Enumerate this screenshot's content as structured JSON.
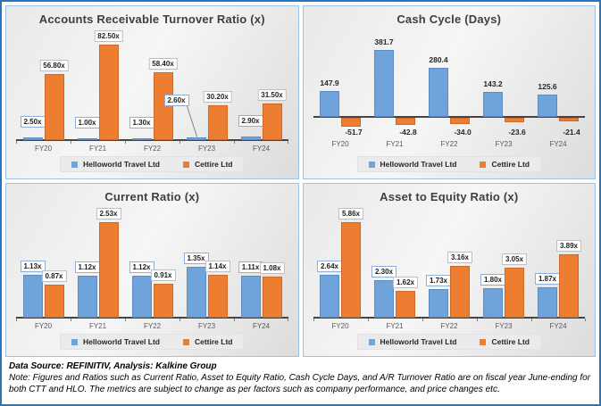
{
  "footer": {
    "source_line": "Data Source: REFINITIV, Analysis: Kalkine Group",
    "note_line": "Note: Figures and Ratios such as Current Ratio, Asset to Equity Ratio, Cash Cycle Days, and A/R Turnover Ratio are on fiscal year June-ending for both CTT and HLO. The metrics are subject to change as per factors such as company performance, and price changes etc."
  },
  "colors": {
    "series_helloworld": "#6FA3DB",
    "series_cettire": "#ED7D31",
    "outer_border": "#2E74B5",
    "panel_border": "#9DC3E6",
    "axis": "#454545"
  },
  "chart_data": [
    {
      "type": "bar",
      "title": "Accounts Receivable Turnover Ratio (x)",
      "categories": [
        "FY20",
        "FY21",
        "FY22",
        "FY23",
        "FY24"
      ],
      "series": [
        {
          "name": "Helloworld Travel Ltd",
          "color": "#6FA3DB",
          "values": [
            2.5,
            1.0,
            1.3,
            2.6,
            2.9
          ],
          "labels": [
            "2.50x",
            "1.00x",
            "1.30x",
            "2.60x",
            "2.90x"
          ]
        },
        {
          "name": "Cettire Ltd",
          "color": "#ED7D31",
          "values": [
            56.8,
            82.5,
            58.4,
            30.2,
            31.5
          ],
          "labels": [
            "56.80x",
            "82.50x",
            "58.40x",
            "30.20x",
            "31.50x"
          ]
        }
      ],
      "ylim": [
        0,
        90
      ],
      "grid": false,
      "legend_position": "bottom",
      "data_label_style": "boxed"
    },
    {
      "type": "bar",
      "title": "Cash Cycle (Days)",
      "categories": [
        "FY20",
        "FY21",
        "FY22",
        "FY23",
        "FY24"
      ],
      "series": [
        {
          "name": "Helloworld Travel Ltd",
          "color": "#6FA3DB",
          "values": [
            147.9,
            381.7,
            280.4,
            143.2,
            125.6
          ],
          "labels": [
            "147.9",
            "381.7",
            "280.4",
            "143.2",
            "125.6"
          ]
        },
        {
          "name": "Cettire Ltd",
          "color": "#ED7D31",
          "values": [
            -51.7,
            -42.8,
            -34.0,
            -23.6,
            -21.4
          ],
          "labels": [
            "-51.7",
            "-42.8",
            "-34.0",
            "-23.6",
            "-21.4"
          ]
        }
      ],
      "ylim": [
        -60,
        420
      ],
      "grid": false,
      "legend_position": "bottom",
      "data_label_style": "plain"
    },
    {
      "type": "bar",
      "title": "Current Ratio (x)",
      "categories": [
        "FY20",
        "FY21",
        "FY22",
        "FY23",
        "FY24"
      ],
      "series": [
        {
          "name": "Helloworld Travel Ltd",
          "color": "#6FA3DB",
          "values": [
            1.13,
            1.12,
            1.12,
            1.35,
            1.11
          ],
          "labels": [
            "1.13x",
            "1.12x",
            "1.12x",
            "1.35x",
            "1.11x"
          ]
        },
        {
          "name": "Cettire Ltd",
          "color": "#ED7D31",
          "values": [
            0.87,
            2.53,
            0.91,
            1.14,
            1.08
          ],
          "labels": [
            "0.87x",
            "2.53x",
            "0.91x",
            "1.14x",
            "1.08x"
          ]
        }
      ],
      "ylim": [
        0,
        2.8
      ],
      "grid": false,
      "legend_position": "bottom",
      "data_label_style": "boxed"
    },
    {
      "type": "bar",
      "title": "Asset to Equity Ratio (x)",
      "categories": [
        "FY20",
        "FY21",
        "FY22",
        "FY23",
        "FY24"
      ],
      "series": [
        {
          "name": "Helloworld Travel Ltd",
          "color": "#6FA3DB",
          "values": [
            2.64,
            2.3,
            1.73,
            1.8,
            1.87
          ],
          "labels": [
            "2.64x",
            "2.30x",
            "1.73x",
            "1.80x",
            "1.87x"
          ]
        },
        {
          "name": "Cettire Ltd",
          "color": "#ED7D31",
          "values": [
            5.86,
            1.62,
            3.16,
            3.05,
            3.89
          ],
          "labels": [
            "5.86x",
            "1.62x",
            "3.16x",
            "3.05x",
            "3.89x"
          ]
        }
      ],
      "ylim": [
        0,
        6.5
      ],
      "grid": false,
      "legend_position": "bottom",
      "data_label_style": "boxed"
    }
  ]
}
